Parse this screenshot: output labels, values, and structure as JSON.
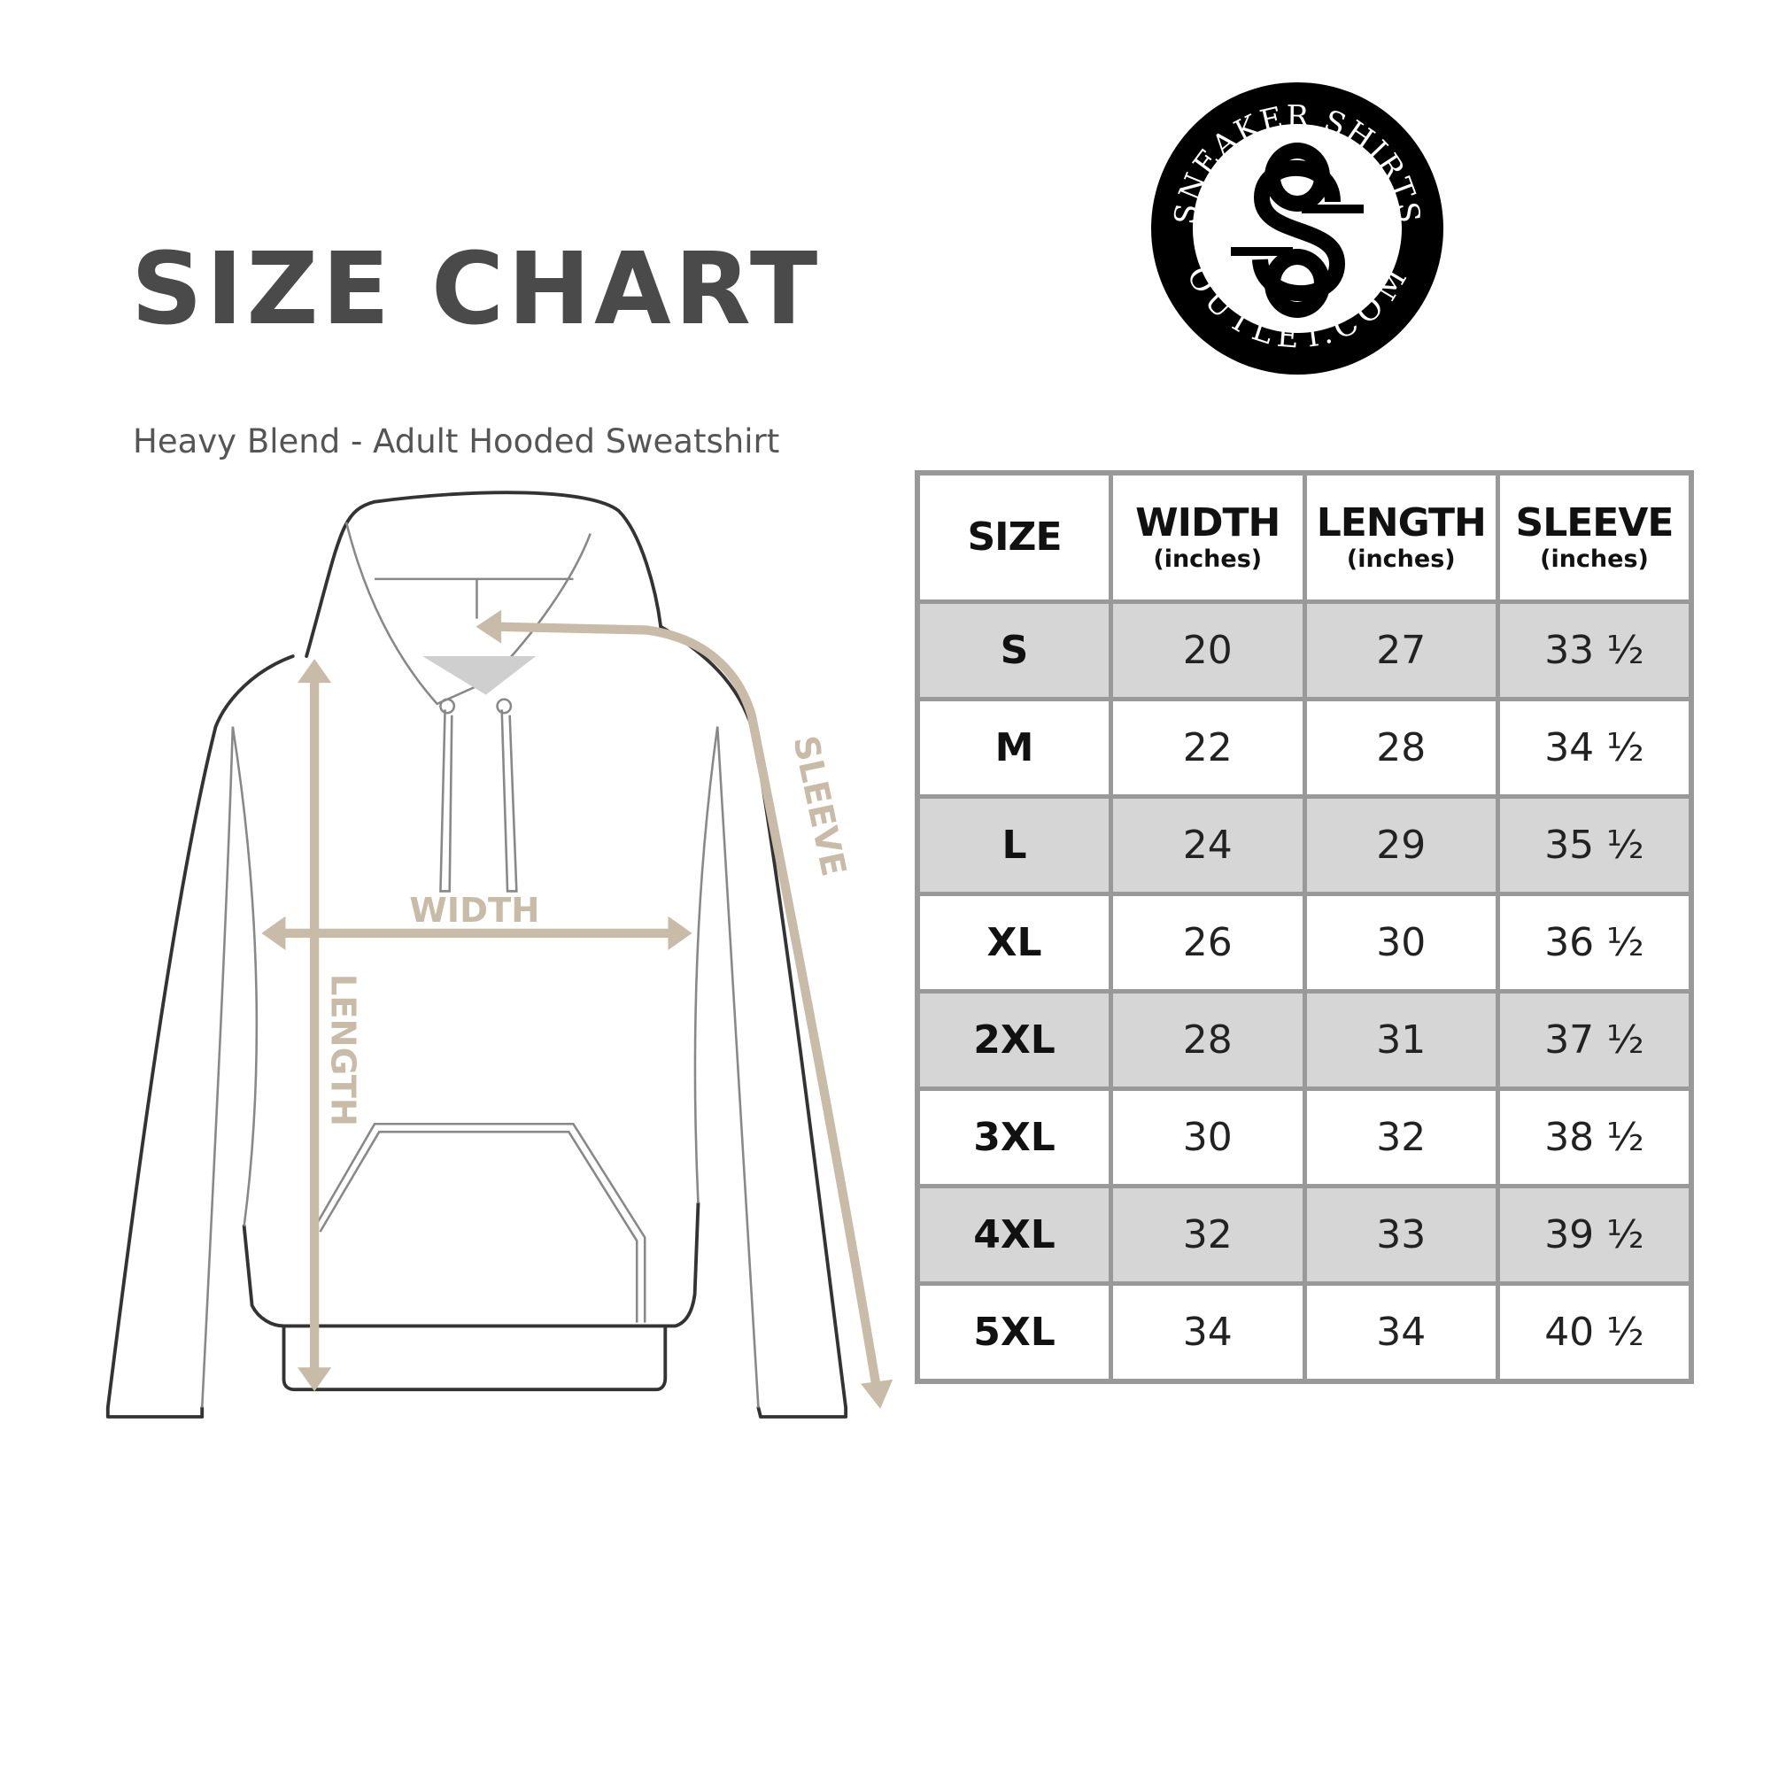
{
  "title": "SIZE CHART",
  "subtitle": "Heavy Blend - Adult Hooded Sweatshirt",
  "logo": {
    "top_text": "SNEAKER SHIRTS",
    "bottom_text": "OUTLET.COM",
    "monogram": "SS"
  },
  "diagram_labels": {
    "width": "WIDTH",
    "length": "LENGTH",
    "sleeve": "SLEEVE"
  },
  "colors": {
    "arrow": "#c8bba7",
    "title": "#4a4a4a",
    "row_shade": "#d6d6d6",
    "border": "#999999"
  },
  "table": {
    "headers": [
      {
        "label": "SIZE",
        "unit": ""
      },
      {
        "label": "WIDTH",
        "unit": "(inches)"
      },
      {
        "label": "LENGTH",
        "unit": "(inches)"
      },
      {
        "label": "SLEEVE",
        "unit": "(inches)"
      }
    ],
    "rows": [
      [
        "S",
        "20",
        "27",
        "33 ½"
      ],
      [
        "M",
        "22",
        "28",
        "34 ½"
      ],
      [
        "L",
        "24",
        "29",
        "35 ½"
      ],
      [
        "XL",
        "26",
        "30",
        "36 ½"
      ],
      [
        "2XL",
        "28",
        "31",
        "37 ½"
      ],
      [
        "3XL",
        "30",
        "32",
        "38 ½"
      ],
      [
        "4XL",
        "32",
        "33",
        "39 ½"
      ],
      [
        "5XL",
        "34",
        "34",
        "40 ½"
      ]
    ]
  }
}
